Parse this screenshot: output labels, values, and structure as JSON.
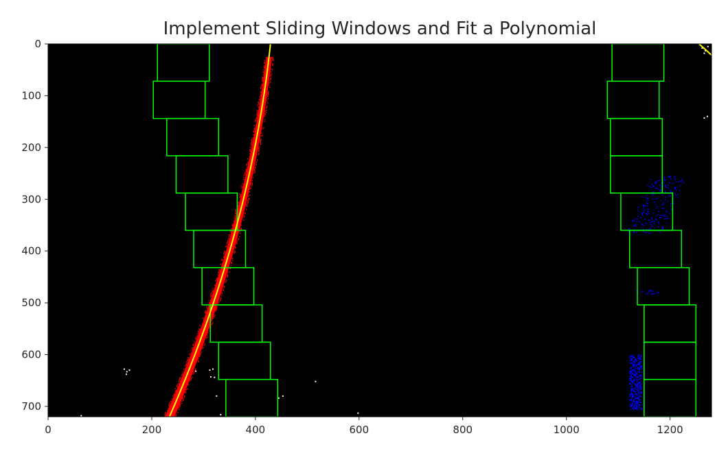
{
  "chart_data": {
    "type": "scatter",
    "title": "Implement Sliding Windows and Fit a Polynomial",
    "xlabel": "",
    "ylabel": "",
    "xlim": [
      0,
      1280
    ],
    "ylim": [
      720,
      0
    ],
    "x_ticks": [
      0,
      200,
      400,
      600,
      800,
      1000,
      1200
    ],
    "y_ticks": [
      0,
      100,
      200,
      300,
      400,
      500,
      600,
      700
    ],
    "grid": false,
    "background": "#000000",
    "colors": {
      "window": "#00ff00",
      "left_lane_pixels": "#ff0000",
      "right_lane_pixels": "#0000ff",
      "fit_line": "#ffff00",
      "noise": "#ffffff"
    },
    "fits": {
      "left": {
        "a": -0.00023,
        "b": -0.1049,
        "c": 429
      },
      "right": {
        "a": -0.00067,
        "b": 1.1339,
        "c": 1256
      }
    },
    "windows": {
      "window_height": 72,
      "left": [
        {
          "x_low": 343,
          "x_high": 443,
          "y_low": 648,
          "y_high": 720
        },
        {
          "x_low": 329,
          "x_high": 429,
          "y_low": 576,
          "y_high": 648
        },
        {
          "x_low": 313,
          "x_high": 413,
          "y_low": 504,
          "y_high": 576
        },
        {
          "x_low": 297,
          "x_high": 397,
          "y_low": 432,
          "y_high": 504
        },
        {
          "x_low": 281,
          "x_high": 381,
          "y_low": 360,
          "y_high": 432
        },
        {
          "x_low": 265,
          "x_high": 365,
          "y_low": 288,
          "y_high": 360
        },
        {
          "x_low": 247,
          "x_high": 347,
          "y_low": 216,
          "y_high": 288
        },
        {
          "x_low": 229,
          "x_high": 329,
          "y_low": 144,
          "y_high": 216
        },
        {
          "x_low": 203,
          "x_high": 303,
          "y_low": 72,
          "y_high": 144
        },
        {
          "x_low": 211,
          "x_high": 311,
          "y_low": 0,
          "y_high": 72
        }
      ],
      "right": [
        {
          "x_low": 1150,
          "x_high": 1250,
          "y_low": 648,
          "y_high": 720
        },
        {
          "x_low": 1150,
          "x_high": 1250,
          "y_low": 576,
          "y_high": 648
        },
        {
          "x_low": 1150,
          "x_high": 1250,
          "y_low": 504,
          "y_high": 576
        },
        {
          "x_low": 1137,
          "x_high": 1237,
          "y_low": 432,
          "y_high": 504
        },
        {
          "x_low": 1122,
          "x_high": 1222,
          "y_low": 360,
          "y_high": 432
        },
        {
          "x_low": 1105,
          "x_high": 1205,
          "y_low": 288,
          "y_high": 360
        },
        {
          "x_low": 1085,
          "x_high": 1185,
          "y_low": 216,
          "y_high": 288
        },
        {
          "x_low": 1085,
          "x_high": 1185,
          "y_low": 144,
          "y_high": 216
        },
        {
          "x_low": 1079,
          "x_high": 1179,
          "y_low": 72,
          "y_high": 144
        },
        {
          "x_low": 1088,
          "x_high": 1188,
          "y_low": 0,
          "y_high": 72
        }
      ]
    },
    "lane_pixel_ranges": {
      "left": {
        "y_from": 25,
        "y_to": 720,
        "half_width": 9
      },
      "right_clusters": [
        {
          "y_from": 255,
          "y_to": 365,
          "half_width": 35
        },
        {
          "y_from": 475,
          "y_to": 483,
          "half_width": 22
        },
        {
          "y_from": 600,
          "y_to": 705,
          "half_width": 12
        }
      ]
    },
    "noise_points": [
      [
        147,
        628
      ],
      [
        152,
        633
      ],
      [
        157,
        630
      ],
      [
        151,
        638
      ],
      [
        312,
        630
      ],
      [
        318,
        628
      ],
      [
        314,
        643
      ],
      [
        321,
        644
      ],
      [
        325,
        680
      ],
      [
        333,
        716
      ],
      [
        445,
        684
      ],
      [
        453,
        680
      ],
      [
        516,
        652
      ],
      [
        598,
        713
      ],
      [
        1262,
        8
      ],
      [
        1268,
        13
      ],
      [
        1273,
        5
      ],
      [
        1266,
        18
      ],
      [
        1266,
        143
      ],
      [
        1272,
        140
      ],
      [
        64,
        718
      ],
      [
        285,
        632
      ]
    ]
  }
}
